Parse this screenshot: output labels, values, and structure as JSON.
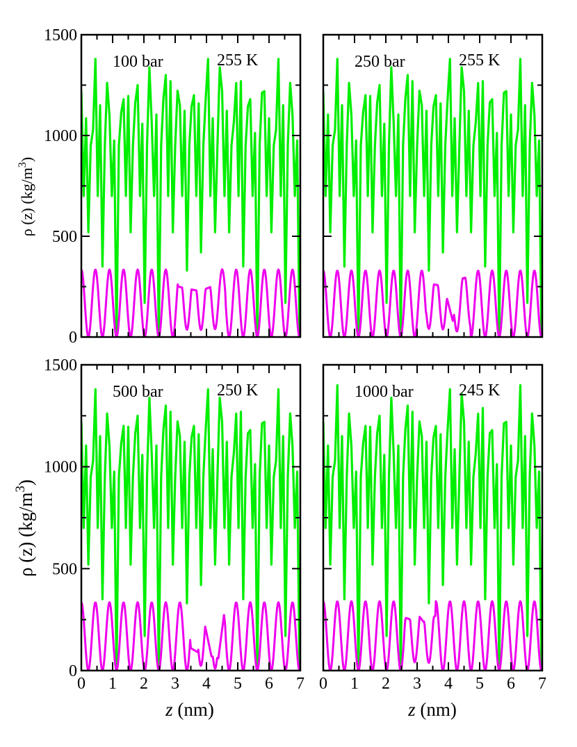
{
  "axes": {
    "ylabel": "ρ (z) (kg/m",
    "ylabel_sup": "3",
    "ylabel_close": ")",
    "xlabel_var": "z",
    "xlabel_unit": " (nm)",
    "x_ticks": [
      "0",
      "1",
      "2",
      "3",
      "4",
      "5",
      "6",
      "7"
    ],
    "y_ticks": [
      "0",
      "500",
      "1000",
      "1500"
    ],
    "xlim": [
      0,
      7
    ],
    "ylim": [
      0,
      1500
    ]
  },
  "colors": {
    "green": "#00ee00",
    "magenta": "#ee00ee"
  },
  "panels": [
    {
      "pressure": "100 bar",
      "temperature": "255 K"
    },
    {
      "pressure": "250 bar",
      "temperature": "255 K"
    },
    {
      "pressure": "500 bar",
      "temperature": "250 K"
    },
    {
      "pressure": "1000 bar",
      "temperature": "245 K"
    }
  ],
  "chart_data": [
    {
      "type": "line",
      "title": "",
      "xlabel": "z (nm)",
      "ylabel": "ρ (z) (kg/m3)",
      "xlim": [
        0,
        7
      ],
      "ylim": [
        0,
        1500
      ],
      "annotations": [
        "100 bar",
        "255 K"
      ],
      "series": [
        {
          "color": "#00ee00",
          "period": 0.45,
          "peaks": [
            1220,
            1380,
            1100,
            1180,
            1250,
            1060,
            1300,
            1150,
            1200,
            1380,
            1220,
            1260,
            1180
          ],
          "minima": [
            520,
            350,
            0,
            520,
            170,
            0,
            520,
            330,
            420,
            520
          ],
          "shoulders": [
            700,
            800,
            1000
          ]
        },
        {
          "color": "#ee00ee",
          "period": 0.45,
          "peak": 335,
          "minimum": 0,
          "defect_range": [
            3.1,
            4.6
          ],
          "defect_values": [
            250,
            240,
            230,
            240,
            260,
            380
          ]
        }
      ]
    },
    {
      "type": "line",
      "title": "",
      "xlabel": "z (nm)",
      "ylabel": "ρ (z) (kg/m3)",
      "xlim": [
        0,
        7
      ],
      "ylim": [
        0,
        1500
      ],
      "annotations": [
        "250 bar",
        "255 K"
      ],
      "series": [
        {
          "color": "#00ee00",
          "period": 0.45,
          "peaks": [
            1220,
            1380,
            1100,
            1200,
            1250,
            1060,
            1300,
            1150,
            1200,
            1380,
            1220,
            1260,
            1180
          ],
          "minima": [
            520,
            350,
            0,
            520,
            170,
            0,
            520,
            330,
            420,
            520
          ],
          "shoulders": [
            700,
            800,
            1000
          ]
        },
        {
          "color": "#ee00ee",
          "period": 0.45,
          "peak": 330,
          "minimum": 0,
          "defect_range": [
            3.3,
            4.7
          ],
          "defect_values": [
            270,
            260,
            250,
            80,
            290,
            300
          ]
        }
      ]
    },
    {
      "type": "line",
      "title": "",
      "xlabel": "z (nm)",
      "ylabel": "ρ (z) (kg/m3)",
      "xlim": [
        0,
        7
      ],
      "ylim": [
        0,
        1500
      ],
      "annotations": [
        "500 bar",
        "250 K"
      ],
      "series": [
        {
          "color": "#00ee00",
          "period": 0.45,
          "peaks": [
            1220,
            1380,
            1100,
            1200,
            1250,
            1060,
            1300,
            1150,
            1200,
            1380,
            1220,
            1260,
            1180
          ],
          "minima": [
            520,
            350,
            0,
            520,
            170,
            0,
            520,
            330,
            420,
            520
          ],
          "shoulders": [
            700,
            800,
            1000
          ]
        },
        {
          "color": "#ee00ee",
          "period": 0.45,
          "peak": 335,
          "minimum": 0,
          "defect_range": [
            3.5,
            4.6
          ],
          "defect_values": [
            110,
            90,
            230,
            70,
            60,
            320
          ]
        }
      ]
    },
    {
      "type": "line",
      "title": "",
      "xlabel": "z (nm)",
      "ylabel": "ρ (z) (kg/m3)",
      "xlim": [
        0,
        7
      ],
      "ylim": [
        0,
        1500
      ],
      "annotations": [
        "1000 bar",
        "245 K"
      ],
      "series": [
        {
          "color": "#00ee00",
          "period": 0.45,
          "peaks": [
            1220,
            1400,
            1100,
            1200,
            1250,
            1060,
            1300,
            1150,
            1200,
            1380,
            1220,
            1260,
            1180
          ],
          "minima": [
            520,
            350,
            0,
            520,
            170,
            0,
            520,
            330,
            420,
            520
          ],
          "shoulders": [
            700,
            800,
            1000
          ]
        },
        {
          "color": "#ee00ee",
          "period": 0.45,
          "peak": 340,
          "minimum": 0,
          "defect_range": [
            2.6,
            3.6
          ],
          "defect_values": [
            260,
            250,
            280,
            240,
            250,
            270
          ]
        }
      ]
    }
  ]
}
